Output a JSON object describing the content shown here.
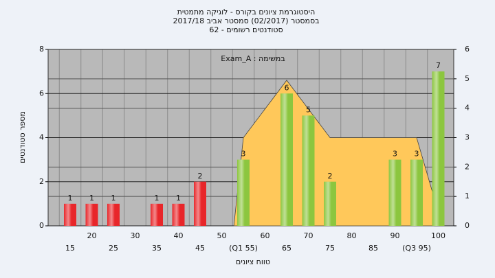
{
  "chart_data": {
    "type": "bar",
    "title": [
      "היסטוגרמת ציונים בקורס - לוגיקה מתמטית",
      "בסמסטר (02/2017) סמסטר אביב 2017/18",
      "סטודנטים רשומים - 62"
    ],
    "annotation": "במשימה : Exam_A",
    "xlabel": "טווח ציונים",
    "ylabel": "מספר סטודנטים",
    "categories": [
      "15",
      "20",
      "25",
      "30",
      "35",
      "40",
      "45",
      "50",
      "(Q1 55)",
      "60",
      "65",
      "70",
      "75",
      "80",
      "85",
      "90",
      "(Q3 95)",
      "100"
    ],
    "values": [
      1,
      1,
      1,
      null,
      1,
      1,
      2,
      null,
      3,
      null,
      6,
      5,
      2,
      null,
      null,
      3,
      3,
      7
    ],
    "colors": [
      "#e8262a",
      "#e8262a",
      "#e8262a",
      null,
      "#e8262a",
      "#e8262a",
      "#e8262a",
      null,
      "#8cc63f",
      null,
      "#8cc63f",
      "#8cc63f",
      "#8cc63f",
      null,
      null,
      "#8cc63f",
      "#8cc63f",
      "#8cc63f"
    ],
    "area": {
      "color": "#ffc85a",
      "x": [
        52.8,
        55,
        65,
        75,
        95,
        99
      ],
      "values": [
        0,
        4,
        6.6,
        4,
        4,
        1.3
      ]
    },
    "ylim": [
      0,
      8
    ],
    "yticks": [
      0,
      2,
      4,
      6,
      8
    ],
    "y2lim": [
      0,
      6
    ],
    "y2ticks": [
      0,
      1,
      2,
      3,
      4,
      5,
      6
    ],
    "grid": true,
    "plot_color": "#b9b9b9"
  }
}
